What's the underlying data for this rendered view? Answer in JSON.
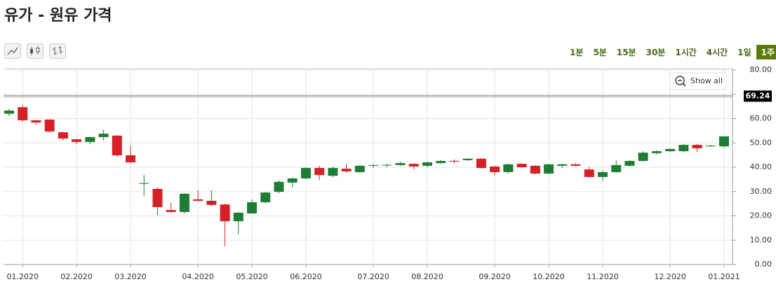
{
  "chart_data": {
    "type": "candlestick",
    "title": "유가 - 원유 가격",
    "timeframes": [
      "1분",
      "5분",
      "15분",
      "30분",
      "1시간",
      "4시간",
      "1일",
      "1주"
    ],
    "selected_timeframe": 7,
    "show_all": "Show all",
    "categories": [
      null,
      "01.2020",
      null,
      null,
      null,
      "02.2020",
      null,
      null,
      null,
      "03.2020",
      null,
      null,
      null,
      null,
      "04.2020",
      null,
      null,
      null,
      "05.2020",
      null,
      null,
      null,
      "06.2020",
      null,
      null,
      null,
      null,
      "07.2020",
      null,
      null,
      null,
      "08.2020",
      null,
      null,
      null,
      null,
      "09.2020",
      null,
      null,
      null,
      "10.2020",
      null,
      null,
      null,
      "11.2020",
      null,
      null,
      null,
      null,
      "12.2020",
      null,
      null,
      null,
      "01.2021"
    ],
    "open": [
      62,
      64.7,
      59.3,
      59.6,
      54.4,
      51.5,
      50.4,
      52.4,
      53,
      44.9,
      33.2,
      31.1,
      22.4,
      21.6,
      26.8,
      26.2,
      24.7,
      17.8,
      21,
      25.6,
      29.9,
      33.7,
      35.4,
      39.7,
      36.5,
      39.4,
      38,
      40.6,
      40.8,
      40.9,
      41.4,
      40.6,
      41.7,
      42.6,
      42.9,
      43.5,
      40.3,
      38,
      41.4,
      40.6,
      37.4,
      40.6,
      41.2,
      39.1,
      36,
      38,
      40.6,
      42.6,
      45.8,
      46.6,
      46.6,
      49.2,
      48.6,
      48.6
    ],
    "high": [
      64,
      65.6,
      59.5,
      59.8,
      54.5,
      51.7,
      52.5,
      55.5,
      53.2,
      48.9,
      36.8,
      31.7,
      25.3,
      29.3,
      30.5,
      30.5,
      24.9,
      21.6,
      26.8,
      29.9,
      34.6,
      35.9,
      40,
      40.6,
      40.2,
      41.4,
      40.9,
      41.2,
      41.5,
      42.3,
      41.7,
      42.3,
      42.9,
      43.2,
      43.8,
      43.8,
      40.6,
      41.4,
      41.7,
      40.9,
      41.4,
      41.4,
      41.7,
      40,
      38.6,
      42.9,
      42.9,
      46.6,
      46.9,
      47.8,
      49.5,
      49.5,
      49.2,
      52.7
    ],
    "low": [
      61,
      58.7,
      57.5,
      54.1,
      51,
      49.5,
      49.5,
      51,
      44.3,
      41.7,
      28.2,
      20.4,
      21.3,
      21,
      25.9,
      24.2,
      7.5,
      12.4,
      21,
      25,
      29.3,
      31.7,
      35.1,
      34.8,
      35.9,
      37.7,
      37.7,
      39.7,
      40,
      40.6,
      39.1,
      40,
      41.4,
      41.7,
      42.6,
      39.4,
      36.8,
      37.4,
      39.7,
      37.1,
      37.1,
      39.7,
      40.3,
      35.7,
      34.5,
      37.7,
      40.3,
      42.3,
      45.2,
      46.3,
      46.3,
      46.3,
      48.3,
      48
    ],
    "close": [
      63.3,
      59.3,
      58.4,
      54.7,
      51.8,
      50.4,
      52.4,
      53.8,
      44.9,
      42,
      33.5,
      23.6,
      21.6,
      29.1,
      26.2,
      24.5,
      17.8,
      21.3,
      25.6,
      29.6,
      34,
      35.4,
      39.7,
      36.8,
      39.7,
      38.3,
      40.6,
      40.9,
      41,
      41.7,
      40.3,
      42,
      42.6,
      42.3,
      43.5,
      39.7,
      38,
      41.2,
      40,
      37.4,
      41.2,
      41.2,
      40.6,
      36,
      38,
      40.9,
      42.6,
      46,
      46.6,
      47.5,
      49.2,
      47.8,
      48.9,
      52.7
    ],
    "up_color": "#1e7d34",
    "down_color": "#d42027",
    "current_price": 69.24,
    "ylim": [
      0,
      80
    ],
    "yticks": [
      {
        "value": 0,
        "label": "0.00"
      },
      {
        "value": 10,
        "label": "10.00"
      },
      {
        "value": 20,
        "label": "20.00"
      },
      {
        "value": 30,
        "label": "30.00"
      },
      {
        "value": 40,
        "label": "40.00"
      },
      {
        "value": 50,
        "label": "50.00"
      },
      {
        "value": 60,
        "label": "60.00"
      },
      {
        "value": 70,
        "label": "70.00"
      },
      {
        "value": 80,
        "label": "80.00"
      }
    ],
    "grid": true
  }
}
